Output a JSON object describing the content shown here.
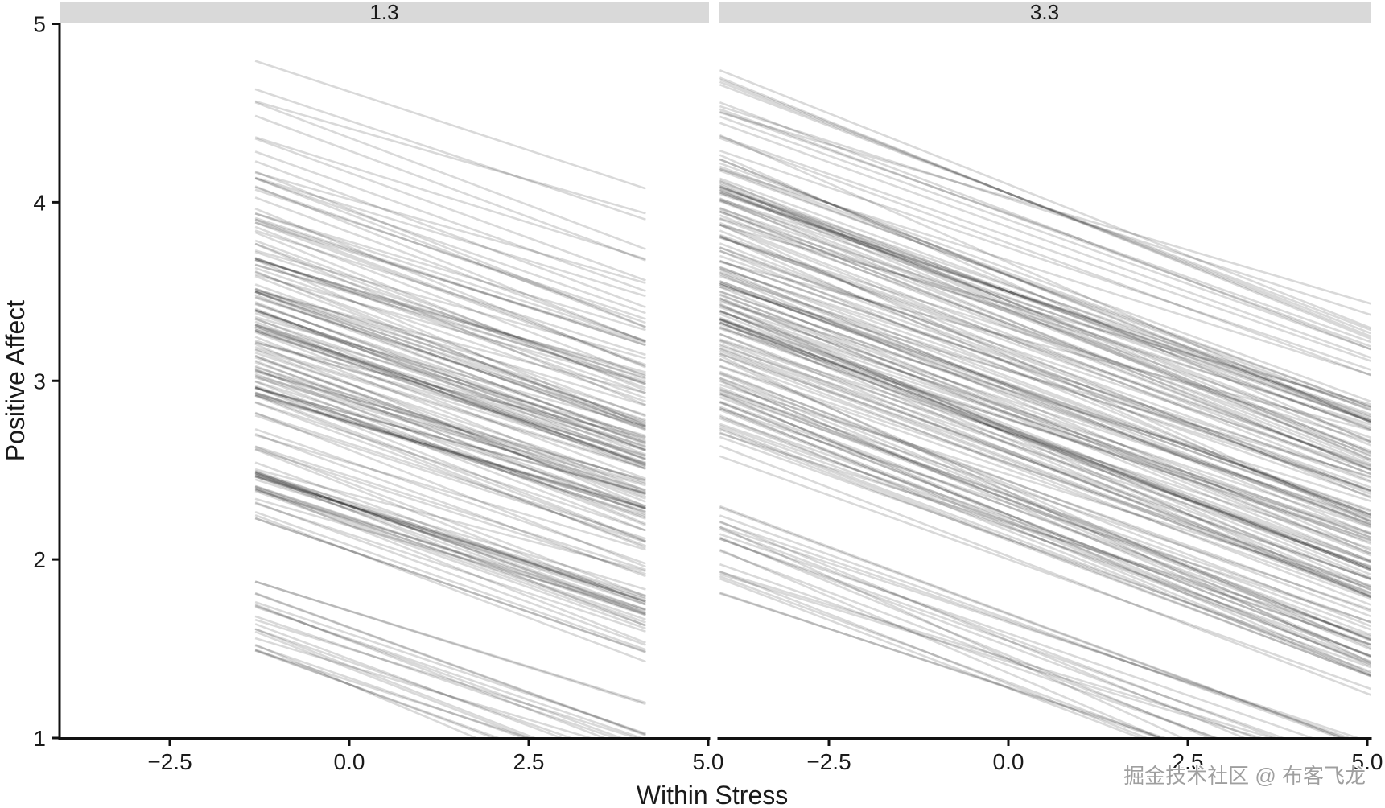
{
  "watermark": {
    "text": "掘金技术社区 @ 布客飞龙"
  },
  "colors": {
    "background": "#ffffff",
    "strip_bg": "#d9d9d9",
    "axis": "#111111",
    "text": "#1a1a1a",
    "line": "#000000",
    "watermark": "#9f9f9f"
  },
  "chart_data": {
    "type": "line",
    "subtype": "spaghetti-plot-individual-regression-lines",
    "title": "",
    "xlabel": "Within Stress",
    "ylabel": "Positive Affect",
    "xlim": [
      -4.05,
      5.05
    ],
    "ylim": [
      1,
      5
    ],
    "x_ticks": [
      -2.5,
      0.0,
      2.5,
      5.0
    ],
    "x_tick_labels": [
      "−2.5",
      "0.0",
      "2.5",
      "5.0"
    ],
    "y_ticks": [
      1,
      2,
      3,
      4,
      5
    ],
    "y_tick_labels": [
      "1",
      "2",
      "3",
      "4",
      "5"
    ],
    "grid": false,
    "legend": false,
    "line_alpha": 0.15,
    "line_width": 2.6,
    "facets": [
      {
        "label": "1.3",
        "x_range_of_lines": [
          -1.31,
          4.13
        ],
        "slope_mean": -0.138,
        "slope_sd": 0.014,
        "seed": 1013,
        "outlier_intercepts": [
          4.62
        ],
        "intercept_clusters": [
          {
            "n": 4,
            "mean": 4.36,
            "sd": 0.06,
            "min": 4.27,
            "max": 4.46
          },
          {
            "n": 28,
            "mean": 3.8,
            "sd": 0.18,
            "min": 3.5,
            "max": 4.2
          },
          {
            "n": 105,
            "mean": 3.0,
            "sd": 0.35,
            "min": 2.3,
            "max": 3.55
          },
          {
            "n": 26,
            "mean": 2.25,
            "sd": 0.12,
            "min": 2.05,
            "max": 2.45
          },
          {
            "n": 20,
            "mean": 1.5,
            "sd": 0.15,
            "min": 1.3,
            "max": 1.72
          }
        ]
      },
      {
        "label": "3.3",
        "x_range_of_lines": [
          -4.02,
          5.05
        ],
        "slope_mean": -0.148,
        "slope_sd": 0.014,
        "seed": 2033,
        "outlier_intercepts": [
          4.1
        ],
        "intercept_clusters": [
          {
            "n": 30,
            "mean": 3.72,
            "sd": 0.2,
            "min": 3.4,
            "max": 4.05
          },
          {
            "n": 110,
            "mean": 2.95,
            "sd": 0.36,
            "min": 2.25,
            "max": 3.5
          },
          {
            "n": 28,
            "mean": 2.2,
            "sd": 0.13,
            "min": 2.0,
            "max": 2.42
          },
          {
            "n": 22,
            "mean": 1.48,
            "sd": 0.15,
            "min": 1.28,
            "max": 1.7
          }
        ]
      }
    ]
  }
}
